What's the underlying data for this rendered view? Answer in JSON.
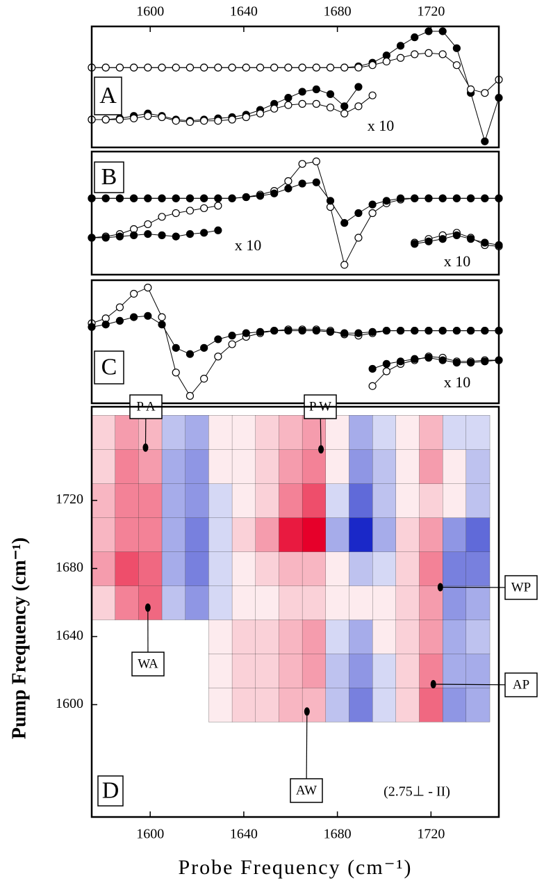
{
  "chart_data": [
    {
      "type": "line",
      "panel_label": "A",
      "x": [
        1575,
        1581,
        1587,
        1593,
        1599,
        1605,
        1611,
        1617,
        1623,
        1629,
        1635,
        1641,
        1647,
        1653,
        1659,
        1665,
        1671,
        1677,
        1683,
        1689,
        1695,
        1701,
        1707,
        1713,
        1719,
        1725,
        1731,
        1737,
        1743,
        1749
      ],
      "xlim": [
        1575,
        1749
      ],
      "ylim": [
        0,
        100
      ],
      "xticks": [
        1600,
        1640,
        1680,
        1720
      ],
      "xtick_side": "top",
      "series": [
        {
          "marker": "filled",
          "color": "#000000",
          "values": [
            66,
            66,
            66,
            66,
            66,
            66,
            66,
            66,
            66,
            66,
            66,
            66,
            66,
            66,
            66,
            66,
            66,
            66,
            66,
            67,
            70,
            76,
            84,
            91,
            96,
            96,
            82,
            45,
            5,
            41
          ]
        },
        {
          "marker": "open",
          "color": "#000000",
          "values": [
            66,
            66,
            66,
            66,
            66,
            66,
            66,
            66,
            66,
            66,
            66,
            66,
            66,
            66,
            66,
            66,
            66,
            66,
            66,
            66,
            68,
            71,
            74,
            77,
            78,
            77,
            68,
            48,
            45,
            56
          ]
        },
        {
          "marker": "filled",
          "color": "#000000",
          "values": [
            23,
            23,
            24,
            26,
            28,
            26,
            23,
            22,
            23,
            24,
            25,
            27,
            31,
            36,
            41,
            46,
            48,
            44,
            34,
            50,
            null,
            null,
            null,
            null,
            null,
            null,
            null,
            null,
            null,
            null
          ]
        },
        {
          "marker": "open",
          "color": "#000000",
          "values": [
            23,
            23,
            23,
            24,
            26,
            25,
            22,
            21,
            22,
            22,
            23,
            25,
            28,
            32,
            35,
            36,
            36,
            33,
            28,
            34,
            43,
            null,
            null,
            null,
            null,
            null,
            null,
            null,
            null,
            null
          ]
        }
      ],
      "annotations": [
        "x 10"
      ]
    },
    {
      "type": "line",
      "panel_label": "B",
      "x": [
        1575,
        1581,
        1587,
        1593,
        1599,
        1605,
        1611,
        1617,
        1623,
        1629,
        1635,
        1641,
        1647,
        1653,
        1659,
        1665,
        1671,
        1677,
        1683,
        1689,
        1695,
        1701,
        1707,
        1713,
        1719,
        1725,
        1731,
        1737,
        1743,
        1749
      ],
      "xlim": [
        1575,
        1749
      ],
      "ylim": [
        0,
        100
      ],
      "series": [
        {
          "marker": "open",
          "color": "#000000",
          "values": [
            62,
            62,
            62,
            62,
            62,
            62,
            62,
            62,
            62,
            62,
            62,
            63,
            65,
            68,
            76,
            90,
            92,
            55,
            8,
            30,
            50,
            58,
            61,
            62,
            62,
            62,
            62,
            62,
            62,
            62
          ]
        },
        {
          "marker": "filled",
          "color": "#000000",
          "values": [
            62,
            62,
            62,
            62,
            62,
            62,
            62,
            62,
            62,
            62,
            62,
            63,
            64,
            66,
            70,
            74,
            75,
            60,
            42,
            50,
            57,
            60,
            62,
            62,
            62,
            62,
            62,
            62,
            62,
            62
          ]
        },
        {
          "marker": "open",
          "color": "#000000",
          "values": [
            30,
            31,
            33,
            37,
            41,
            47,
            50,
            52,
            54,
            56,
            null,
            null,
            null,
            null,
            null,
            null,
            null,
            null,
            null,
            null,
            null,
            null,
            null,
            null,
            null,
            null,
            null,
            null,
            null,
            null
          ]
        },
        {
          "marker": "filled",
          "color": "#000000",
          "values": [
            30,
            30,
            31,
            32,
            33,
            32,
            31,
            33,
            34,
            36,
            null,
            null,
            null,
            null,
            null,
            null,
            null,
            null,
            null,
            null,
            null,
            null,
            null,
            null,
            null,
            null,
            null,
            null,
            null,
            null
          ]
        },
        {
          "marker": "open",
          "color": "#000000",
          "values": [
            null,
            null,
            null,
            null,
            null,
            null,
            null,
            null,
            null,
            null,
            null,
            null,
            null,
            null,
            null,
            null,
            null,
            null,
            null,
            null,
            null,
            null,
            null,
            26,
            29,
            32,
            34,
            30,
            24,
            23
          ]
        },
        {
          "marker": "filled",
          "color": "#000000",
          "values": [
            null,
            null,
            null,
            null,
            null,
            null,
            null,
            null,
            null,
            null,
            null,
            null,
            null,
            null,
            null,
            null,
            null,
            null,
            null,
            null,
            null,
            null,
            null,
            25,
            27,
            29,
            32,
            29,
            26,
            24
          ]
        }
      ],
      "annotations": [
        "x 10",
        "x 10"
      ]
    },
    {
      "type": "line",
      "panel_label": "C",
      "x": [
        1575,
        1581,
        1587,
        1593,
        1599,
        1605,
        1611,
        1617,
        1623,
        1629,
        1635,
        1641,
        1647,
        1653,
        1659,
        1665,
        1671,
        1677,
        1683,
        1689,
        1695,
        1701,
        1707,
        1713,
        1719,
        1725,
        1731,
        1737,
        1743,
        1749
      ],
      "xlim": [
        1575,
        1749
      ],
      "ylim": [
        0,
        100
      ],
      "series": [
        {
          "marker": "open",
          "color": "#000000",
          "values": [
            65,
            69,
            78,
            89,
            94,
            70,
            25,
            6,
            20,
            38,
            48,
            54,
            57,
            59,
            60,
            60,
            60,
            59,
            56,
            55,
            57,
            59,
            59,
            59,
            59,
            59,
            59,
            59,
            59,
            59
          ]
        },
        {
          "marker": "filled",
          "color": "#000000",
          "values": [
            62,
            64,
            67,
            70,
            71,
            64,
            45,
            40,
            45,
            52,
            55,
            57,
            58,
            59,
            59,
            59,
            59,
            58,
            57,
            57,
            58,
            59,
            59,
            59,
            59,
            59,
            59,
            59,
            59,
            59
          ]
        },
        {
          "marker": "open",
          "color": "#000000",
          "values": [
            null,
            null,
            null,
            null,
            null,
            null,
            null,
            null,
            null,
            null,
            null,
            null,
            null,
            null,
            null,
            null,
            null,
            null,
            null,
            null,
            14,
            26,
            32,
            35,
            38,
            37,
            34,
            34,
            35,
            35
          ]
        },
        {
          "marker": "filled",
          "color": "#000000",
          "values": [
            null,
            null,
            null,
            null,
            null,
            null,
            null,
            null,
            null,
            null,
            null,
            null,
            null,
            null,
            null,
            null,
            null,
            null,
            null,
            null,
            28,
            32,
            34,
            36,
            37,
            35,
            33,
            33,
            34,
            35
          ]
        }
      ],
      "annotations": [
        "x 10"
      ]
    },
    {
      "type": "contour",
      "panel_label": "D",
      "xlabel": "Probe Frequency (cm⁻¹)",
      "ylabel": "Pump Frequency (cm⁻¹)",
      "x": [
        1580,
        1590,
        1600,
        1610,
        1620,
        1630,
        1640,
        1650,
        1660,
        1670,
        1680,
        1690,
        1700,
        1710,
        1720,
        1730,
        1740
      ],
      "y": [
        1600,
        1620,
        1640,
        1660,
        1680,
        1700,
        1720,
        1740,
        1760
      ],
      "z": [
        [
          null,
          null,
          null,
          null,
          null,
          0,
          1,
          1,
          2,
          2,
          -2,
          -5,
          -1,
          1,
          5,
          -4,
          -3
        ],
        [
          null,
          null,
          null,
          null,
          null,
          0,
          1,
          1,
          2,
          3,
          -2,
          -4,
          -1,
          1,
          4,
          -3,
          -3
        ],
        [
          null,
          null,
          null,
          null,
          null,
          0,
          1,
          1,
          2,
          3,
          -1,
          -3,
          0,
          1,
          3,
          -3,
          -2
        ],
        [
          1,
          4,
          5,
          -2,
          -4,
          -1,
          0,
          0,
          1,
          1,
          0,
          0,
          0,
          1,
          3,
          -4,
          -3
        ],
        [
          3,
          6,
          5,
          -3,
          -5,
          -1,
          0,
          1,
          2,
          2,
          0,
          -2,
          -1,
          1,
          4,
          -5,
          -5
        ],
        [
          2,
          4,
          4,
          -3,
          -5,
          -1,
          1,
          3,
          8,
          9,
          -3,
          -9,
          -3,
          1,
          3,
          -4,
          -6
        ],
        [
          2,
          4,
          4,
          -3,
          -4,
          -1,
          0,
          1,
          4,
          6,
          -1,
          -6,
          -2,
          0,
          1,
          0,
          -2
        ],
        [
          1,
          4,
          3,
          -3,
          -4,
          0,
          0,
          1,
          3,
          4,
          0,
          -4,
          -2,
          0,
          3,
          0,
          -2
        ],
        [
          1,
          3,
          2,
          -2,
          -3,
          0,
          0,
          1,
          2,
          3,
          0,
          -3,
          -1,
          0,
          2,
          -1,
          -1
        ]
      ],
      "positive_color": "#e6002a",
      "negative_color": "#1a28c8",
      "xlim": [
        1575,
        1749
      ],
      "ylim": [
        1534,
        1775
      ],
      "xticks": [
        1600,
        1640,
        1680,
        1720
      ],
      "yticks": [
        1600,
        1640,
        1680,
        1720
      ],
      "annotations": [
        {
          "text": "P A",
          "x": 1598,
          "y": 1751
        },
        {
          "text": "P W",
          "x": 1673,
          "y": 1750
        },
        {
          "text": "WA",
          "x": 1599,
          "y": 1657
        },
        {
          "text": "AW",
          "x": 1667,
          "y": 1596
        },
        {
          "text": "WP",
          "x": 1724,
          "y": 1669
        },
        {
          "text": "AP",
          "x": 1721,
          "y": 1612
        }
      ],
      "condition_label": "(2.75⊥ - II)"
    }
  ]
}
